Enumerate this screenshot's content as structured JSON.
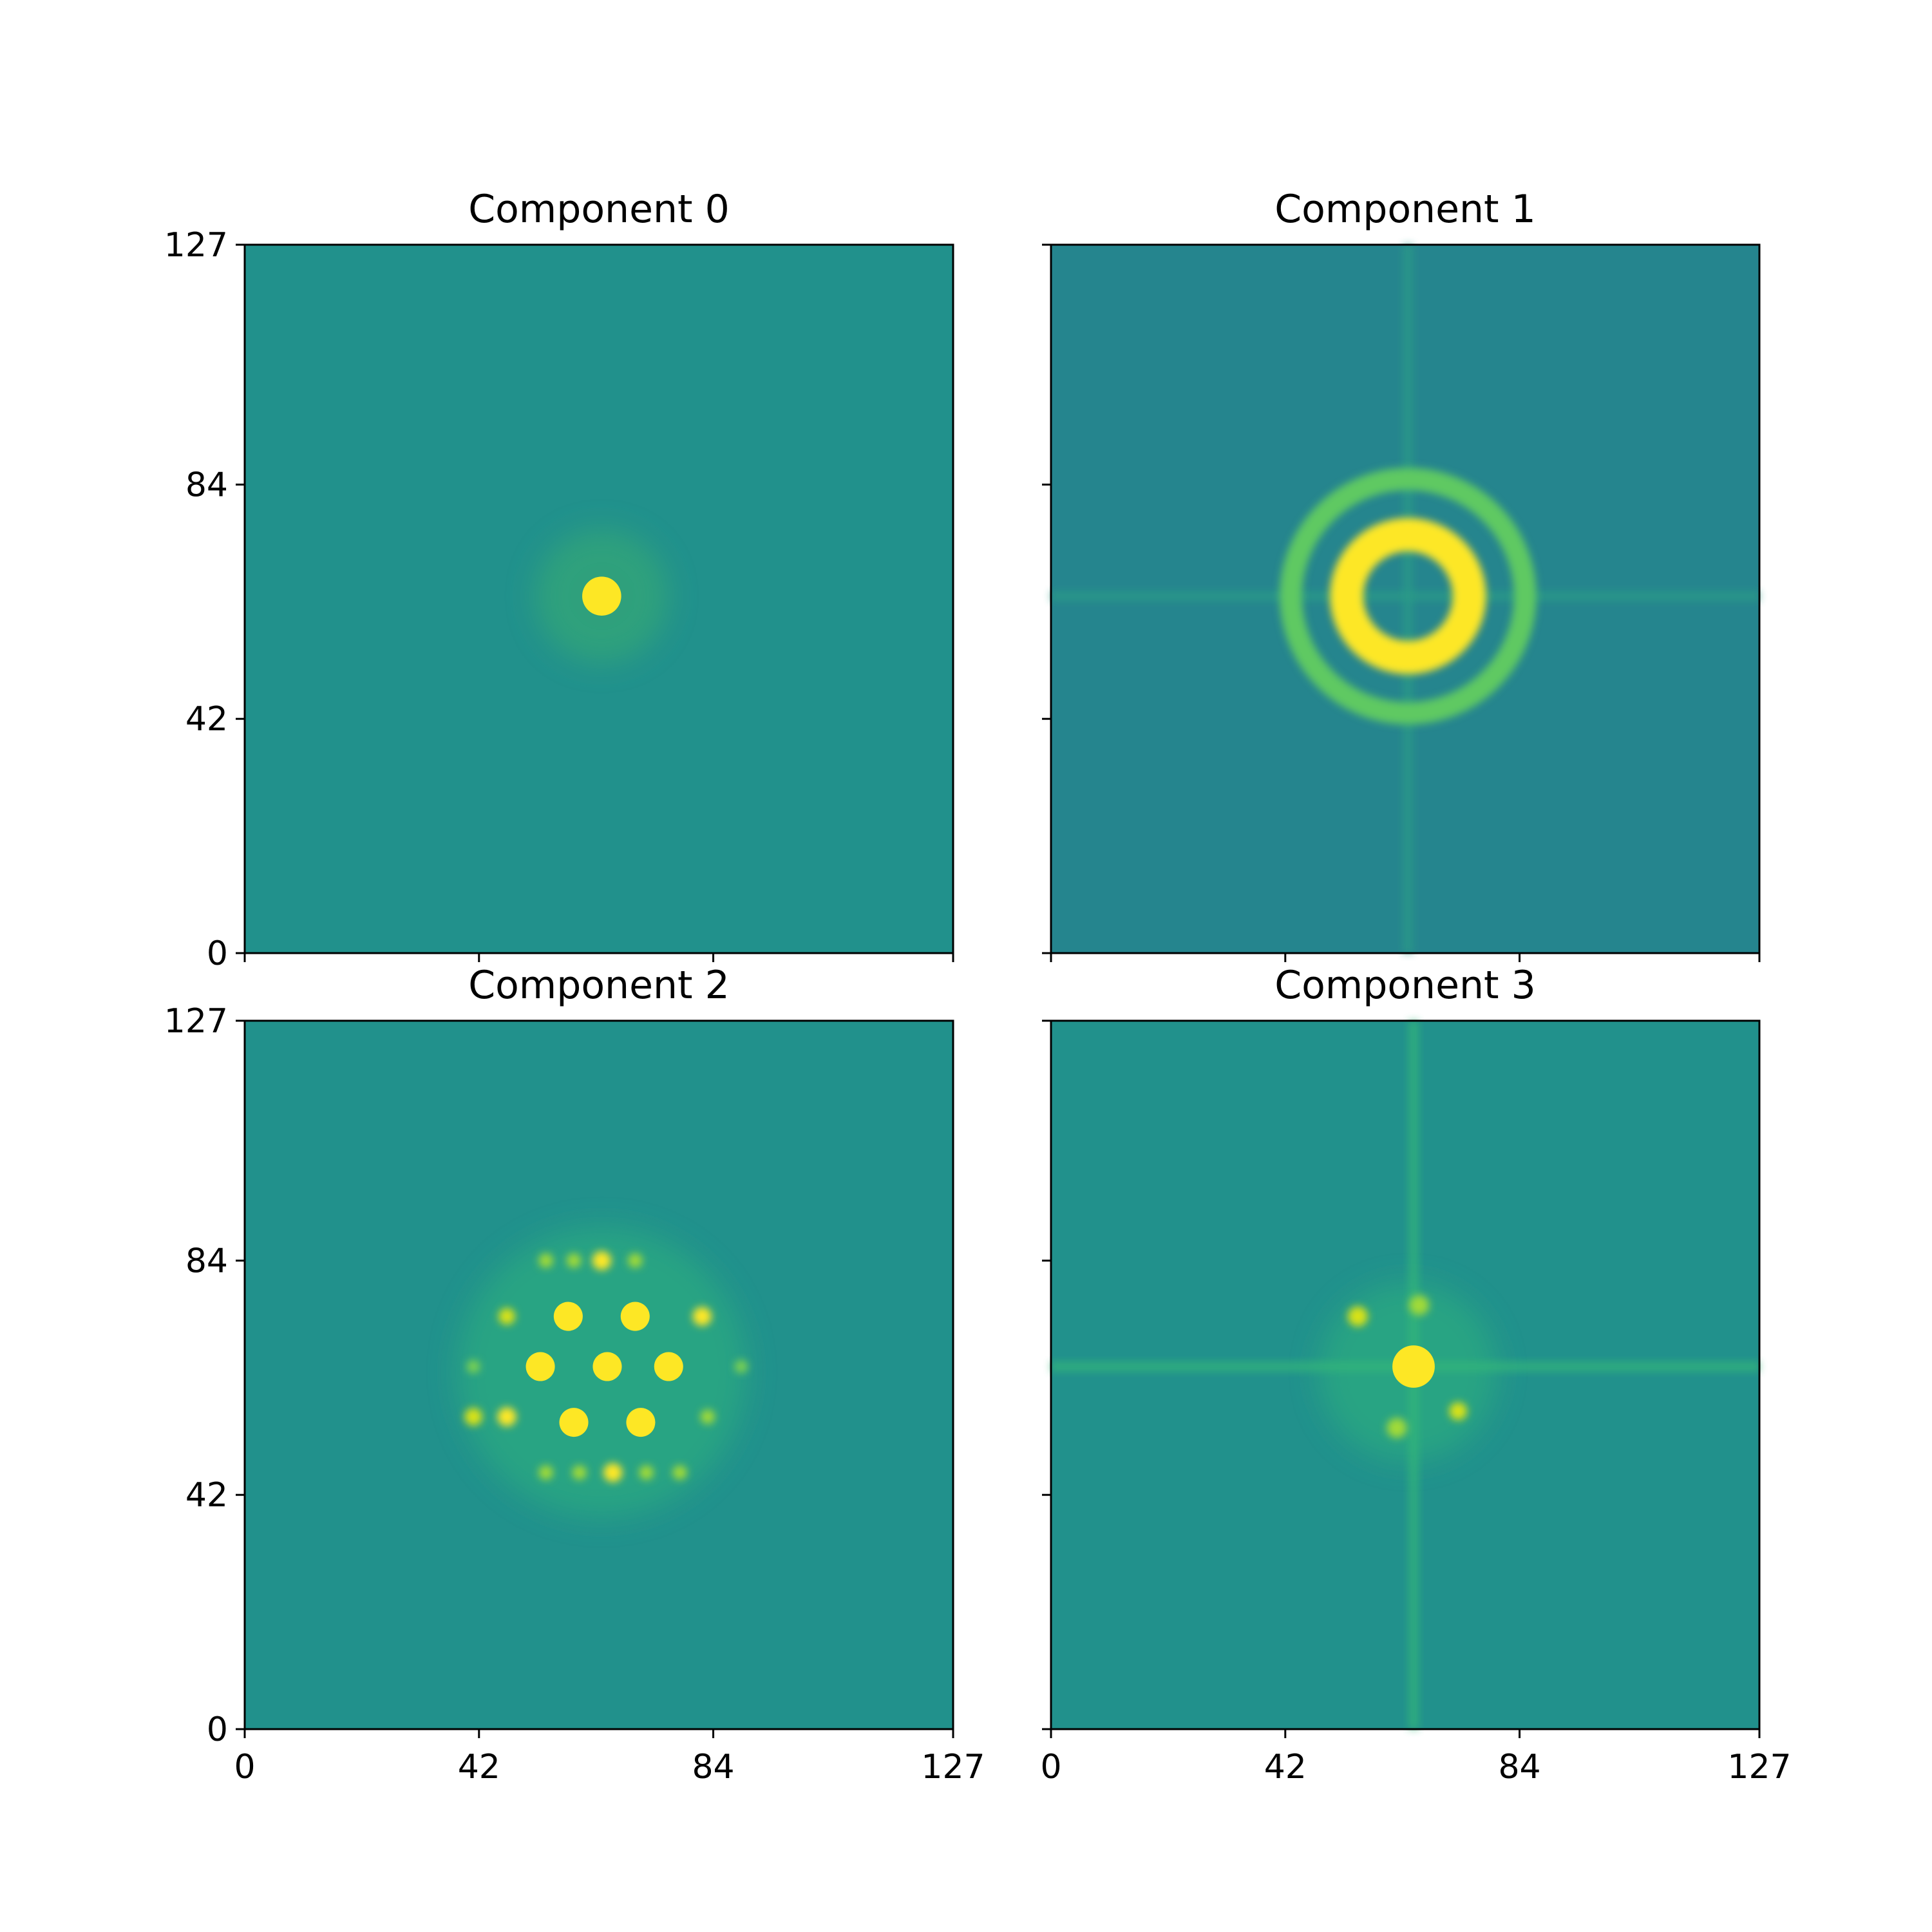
{
  "chart_data": [
    {
      "type": "heatmap",
      "title": "Component 0",
      "xlim": [
        0,
        127
      ],
      "ylim": [
        0,
        127
      ],
      "xticks": [],
      "yticks": [
        "0",
        "42",
        "84",
        "127"
      ],
      "background": "#21918c",
      "features": [
        {
          "kind": "spot",
          "x": 64,
          "y": 64,
          "r": 3.5,
          "color": "#fde725"
        },
        {
          "kind": "halo",
          "x": 64,
          "y": 64,
          "r": 12,
          "color": "#3aae6f"
        }
      ]
    },
    {
      "type": "heatmap",
      "title": "Component 1",
      "xlim": [
        0,
        127
      ],
      "ylim": [
        0,
        127
      ],
      "xticks": [],
      "yticks": [],
      "background": "#25858e",
      "features": [
        {
          "kind": "ring",
          "x": 64,
          "y": 64,
          "r": 11,
          "width": 6,
          "color": "#fde725"
        },
        {
          "kind": "ring",
          "x": 64,
          "y": 64,
          "r": 21,
          "width": 4,
          "color": "#5ec962"
        },
        {
          "kind": "hline",
          "y": 64,
          "color": "#2c9c87"
        },
        {
          "kind": "vline",
          "x": 64,
          "color": "#2c9c87"
        }
      ]
    },
    {
      "type": "heatmap",
      "title": "Component 2",
      "xlim": [
        0,
        127
      ],
      "ylim": [
        0,
        127
      ],
      "xticks": [
        "0",
        "42",
        "84",
        "127"
      ],
      "yticks": [
        "0",
        "42",
        "84",
        "127"
      ],
      "background": "#21918c",
      "features": [
        {
          "kind": "spot",
          "x": 58,
          "y": 74,
          "r": 2.6,
          "color": "#fde725"
        },
        {
          "kind": "spot",
          "x": 70,
          "y": 74,
          "r": 2.6,
          "color": "#fde725"
        },
        {
          "kind": "spot",
          "x": 53,
          "y": 65,
          "r": 2.6,
          "color": "#fde725"
        },
        {
          "kind": "spot",
          "x": 65,
          "y": 65,
          "r": 2.6,
          "color": "#fde725"
        },
        {
          "kind": "spot",
          "x": 76,
          "y": 65,
          "r": 2.6,
          "color": "#fde725"
        },
        {
          "kind": "spot",
          "x": 59,
          "y": 55,
          "r": 2.6,
          "color": "#fde725"
        },
        {
          "kind": "spot",
          "x": 71,
          "y": 55,
          "r": 2.6,
          "color": "#fde725"
        },
        {
          "kind": "dot",
          "x": 47,
          "y": 56,
          "r": 1.7,
          "color": "#fde725"
        },
        {
          "kind": "dot",
          "x": 82,
          "y": 74,
          "r": 1.7,
          "color": "#fde725"
        },
        {
          "kind": "dot",
          "x": 64,
          "y": 84,
          "r": 1.7,
          "color": "#fde725"
        },
        {
          "kind": "dot",
          "x": 66,
          "y": 46,
          "r": 1.7,
          "color": "#fde725"
        },
        {
          "kind": "dot",
          "x": 47,
          "y": 74,
          "r": 1.5,
          "color": "#d8e219"
        },
        {
          "kind": "dot",
          "x": 41,
          "y": 56,
          "r": 1.6,
          "color": "#d8e219"
        },
        {
          "kind": "dot",
          "x": 54,
          "y": 84,
          "r": 1.3,
          "color": "#a0da39"
        },
        {
          "kind": "dot",
          "x": 59,
          "y": 84,
          "r": 1.3,
          "color": "#a0da39"
        },
        {
          "kind": "dot",
          "x": 70,
          "y": 84,
          "r": 1.3,
          "color": "#a0da39"
        },
        {
          "kind": "dot",
          "x": 54,
          "y": 46,
          "r": 1.3,
          "color": "#a0da39"
        },
        {
          "kind": "dot",
          "x": 60,
          "y": 46,
          "r": 1.3,
          "color": "#a0da39"
        },
        {
          "kind": "dot",
          "x": 72,
          "y": 46,
          "r": 1.3,
          "color": "#a0da39"
        },
        {
          "kind": "dot",
          "x": 78,
          "y": 46,
          "r": 1.3,
          "color": "#a0da39"
        },
        {
          "kind": "dot",
          "x": 83,
          "y": 56,
          "r": 1.3,
          "color": "#a0da39"
        },
        {
          "kind": "dot",
          "x": 41,
          "y": 65,
          "r": 1.2,
          "color": "#7ad151"
        },
        {
          "kind": "dot",
          "x": 89,
          "y": 65,
          "r": 1.2,
          "color": "#7ad151"
        },
        {
          "kind": "halo",
          "x": 64,
          "y": 64,
          "r": 26,
          "color": "#2fb47c"
        }
      ]
    },
    {
      "type": "heatmap",
      "title": "Component 3",
      "xlim": [
        0,
        127
      ],
      "ylim": [
        0,
        127
      ],
      "xticks": [
        "0",
        "42",
        "84",
        "127"
      ],
      "yticks": [],
      "background": "#21918c",
      "features": [
        {
          "kind": "spot",
          "x": 65,
          "y": 65,
          "r": 3.8,
          "color": "#fde725"
        },
        {
          "kind": "dot",
          "x": 55,
          "y": 74,
          "r": 1.8,
          "color": "#d8e219"
        },
        {
          "kind": "dot",
          "x": 73,
          "y": 57,
          "r": 1.6,
          "color": "#d8e219"
        },
        {
          "kind": "dot",
          "x": 66,
          "y": 76,
          "r": 1.8,
          "color": "#a0da39"
        },
        {
          "kind": "dot",
          "x": 62,
          "y": 54,
          "r": 1.8,
          "color": "#a0da39"
        },
        {
          "kind": "halo",
          "x": 64,
          "y": 64,
          "r": 16,
          "color": "#2fb47c"
        },
        {
          "kind": "hline",
          "y": 65,
          "color": "#35b779"
        },
        {
          "kind": "vline",
          "x": 65,
          "color": "#35b779"
        }
      ]
    }
  ]
}
